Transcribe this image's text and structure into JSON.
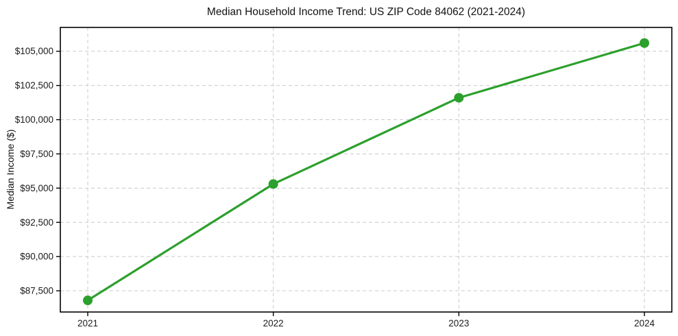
{
  "title": "Median Household Income Trend: US ZIP Code 84062 (2021-2024)",
  "chart_data": {
    "type": "line",
    "title": "Median Household Income Trend: US ZIP Code 84062 (2021-2024)",
    "xlabel": "",
    "ylabel": "Median Income ($)",
    "categories": [
      "2021",
      "2022",
      "2023",
      "2024"
    ],
    "series": [
      {
        "name": "Median Household Income",
        "values": [
          86800,
          95300,
          101600,
          105600
        ],
        "color": "#2ca02c",
        "marker": "circle"
      }
    ],
    "yticks": [
      87500,
      90000,
      92500,
      95000,
      97500,
      100000,
      102500,
      105000
    ],
    "ytick_labels": [
      "$87,500",
      "$90,000",
      "$92,500",
      "$95,000",
      "$97,500",
      "$100,000",
      "$102,500",
      "$105,000"
    ],
    "xtick_labels": [
      "2021",
      "2022",
      "2023",
      "2024"
    ],
    "ylim": [
      85950,
      106740
    ],
    "grid": true,
    "grid_style": "dashed",
    "grid_color": "#c9c9c9",
    "legend": false,
    "border_color": "#000000",
    "background_color": "#ffffff"
  }
}
